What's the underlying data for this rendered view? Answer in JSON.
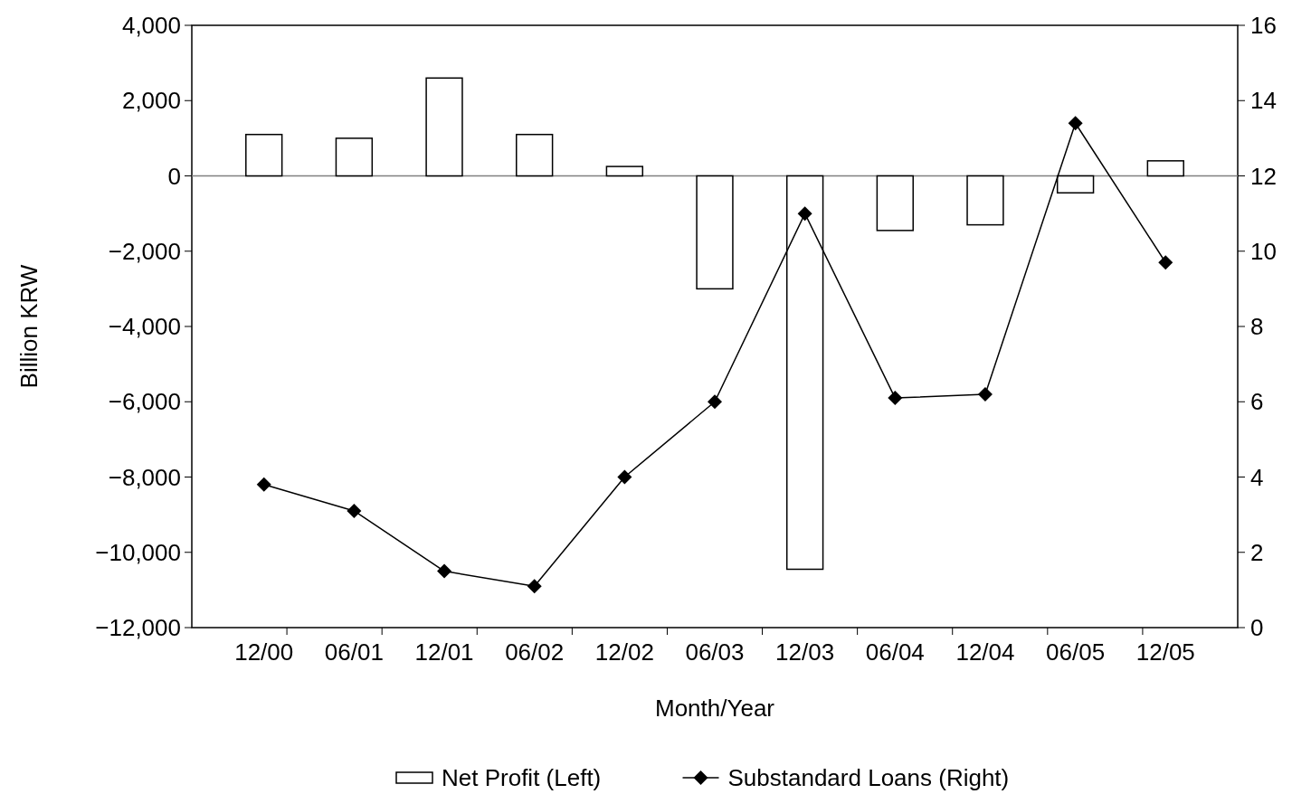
{
  "chart_data": {
    "type": "bar",
    "xlabel": "Month/Year",
    "ylabel": "Billion KRW",
    "categories": [
      "12/00",
      "06/01",
      "12/01",
      "06/02",
      "12/02",
      "06/03",
      "12/03",
      "06/04",
      "12/04",
      "06/05",
      "12/05"
    ],
    "series": [
      {
        "name": "Net Profit (Left)",
        "color": "#ffffff",
        "values": [
          1100,
          1000,
          2600,
          1100,
          250,
          -3000,
          -10450,
          -1450,
          -1300,
          -450,
          400
        ]
      },
      {
        "name": "Substandard Loans (Right)",
        "type": "line",
        "axis": "y2",
        "color": "#000000",
        "marker": "diamond",
        "values": [
          3.8,
          3.1,
          1.5,
          1.1,
          4.0,
          6.0,
          11.0,
          6.1,
          6.2,
          13.4,
          9.7
        ]
      }
    ],
    "ylim": [
      -12000,
      4000
    ],
    "yticks": [
      {
        "value": -12000,
        "label": "−12,000"
      },
      {
        "value": -10000,
        "label": "−10,000"
      },
      {
        "value": -8000,
        "label": "−8,000"
      },
      {
        "value": -6000,
        "label": "−6,000"
      },
      {
        "value": -4000,
        "label": "−4,000"
      },
      {
        "value": -2000,
        "label": "−2,000"
      },
      0,
      {
        "value": 2000,
        "label": "2,000"
      },
      {
        "value": 4000,
        "label": "4,000"
      }
    ],
    "y2lim": [
      0,
      16
    ],
    "y2ticks": [
      0,
      2,
      4,
      6,
      8,
      10,
      12,
      14,
      16
    ],
    "ref_lines": [
      {
        "axis": "y",
        "value": 0,
        "color": "#808080"
      }
    ],
    "legend": "bottom",
    "grid": false
  }
}
